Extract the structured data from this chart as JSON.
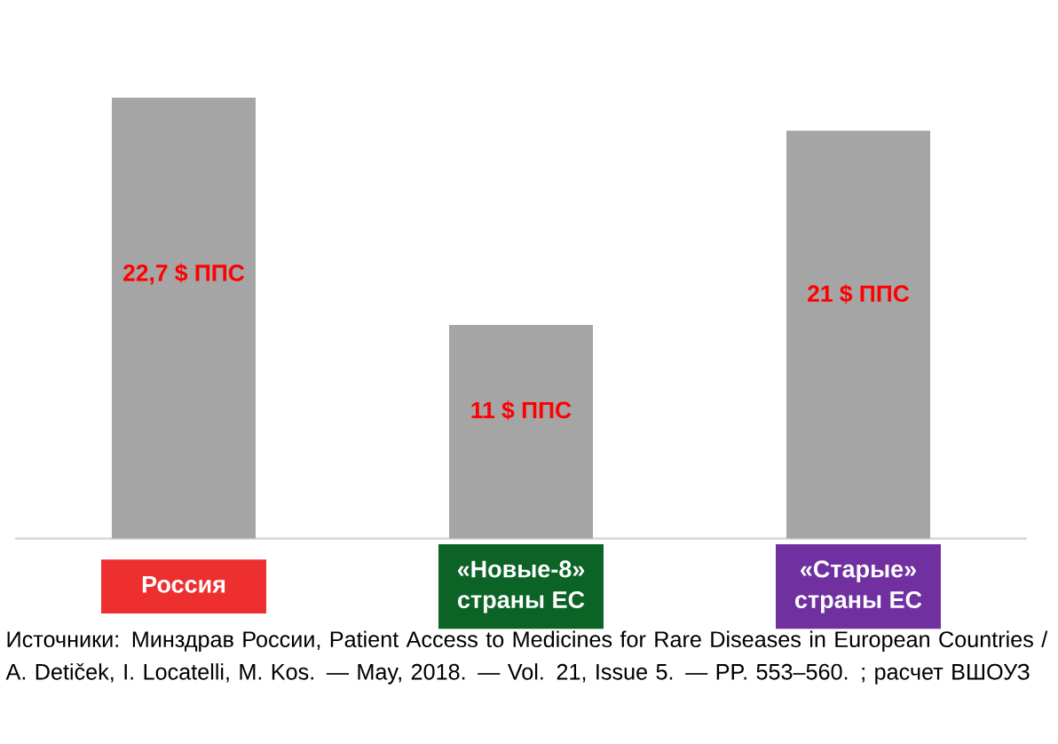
{
  "chart_data": {
    "type": "bar",
    "categories": [
      "Россия",
      "«Новые-8» страны ЕС",
      "«Старые» страны ЕС"
    ],
    "values": [
      22.7,
      11,
      21
    ],
    "color": "#a5a5a5",
    "value_labels": [
      "22,7 $ ППС",
      "11 $ ППС",
      "21 $ ППС"
    ],
    "annotations": [
      "Источники: Минздрав России, Patient Access to Medicines for Rare Diseases in European Countries / A. Detiček, I. Locatelli, M. Kos. — May, 2018. — Vol. 21, Issue 5. — PP. 553–560. ; расчет ВШОУЗ"
    ]
  }
}
